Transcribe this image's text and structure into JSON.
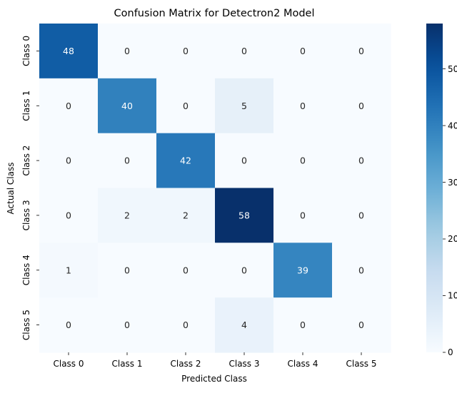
{
  "chart_data": {
    "type": "heatmap",
    "title": "Confusion Matrix for Detectron2 Model",
    "xlabel": "Predicted Class",
    "ylabel": "Actual Class",
    "x_categories": [
      "Class 0",
      "Class 1",
      "Class 2",
      "Class 3",
      "Class 4",
      "Class 5"
    ],
    "y_categories": [
      "Class 0",
      "Class 1",
      "Class 2",
      "Class 3",
      "Class 4",
      "Class 5"
    ],
    "values": [
      [
        48,
        0,
        0,
        0,
        0,
        0
      ],
      [
        0,
        40,
        0,
        5,
        0,
        0
      ],
      [
        0,
        0,
        42,
        0,
        0,
        0
      ],
      [
        0,
        2,
        2,
        58,
        0,
        0
      ],
      [
        1,
        0,
        0,
        0,
        39,
        0
      ],
      [
        0,
        0,
        0,
        4,
        0,
        0
      ]
    ],
    "colorbar": {
      "min": 0,
      "max": 58,
      "ticks": [
        0,
        10,
        20,
        30,
        40,
        50
      ]
    },
    "colormap": "Blues",
    "annotations": true,
    "grid": false,
    "legend": "colorbar-right"
  }
}
